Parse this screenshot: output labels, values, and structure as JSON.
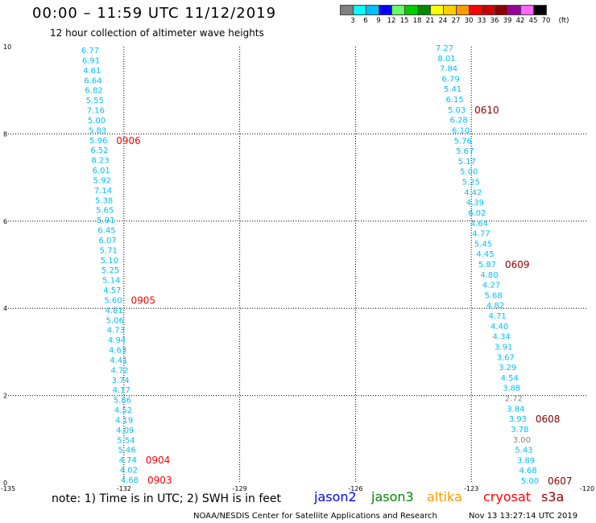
{
  "header": {
    "title": "00:00 – 11:59 UTC 11/12/2019",
    "subtitle": "12 hour collection of altimeter wave heights"
  },
  "legend": {
    "unit": "(ft)",
    "levels": [
      {
        "label": "3",
        "color": "#808080"
      },
      {
        "label": "6",
        "color": "#00ffff"
      },
      {
        "label": "9",
        "color": "#00bfff"
      },
      {
        "label": "12",
        "color": "#0000ff"
      },
      {
        "label": "15",
        "color": "#66ff66"
      },
      {
        "label": "18",
        "color": "#00cc00"
      },
      {
        "label": "21",
        "color": "#008800"
      },
      {
        "label": "24",
        "color": "#ffff00"
      },
      {
        "label": "27",
        "color": "#ffcc00"
      },
      {
        "label": "30",
        "color": "#ff9900"
      },
      {
        "label": "33",
        "color": "#ff0000"
      },
      {
        "label": "36",
        "color": "#cc0000"
      },
      {
        "label": "39",
        "color": "#880000"
      },
      {
        "label": "42",
        "color": "#990099"
      },
      {
        "label": "45",
        "color": "#ff66ff"
      },
      {
        "label": "70",
        "color": "#000000"
      }
    ]
  },
  "map": {
    "lon_ticks": [
      "-135",
      "-132",
      "-129",
      "-126",
      "-123",
      "-120"
    ],
    "lat_ticks": [
      "0",
      "2",
      "4",
      "6",
      "8",
      "10"
    ],
    "grid": "dotted"
  },
  "tracks": [
    {
      "name": "west",
      "color": "#00bfff",
      "heights": [
        "6.77",
        "6.91",
        "4.61",
        "6.64",
        "6.82",
        "5.55",
        "7.16",
        "5.00",
        "5.83",
        "5.96",
        "6.52",
        "8.23",
        "6.01",
        "5.92",
        "7.14",
        "5.38",
        "5.65",
        "5.91",
        "6.45",
        "6.07",
        "5.71",
        "5.10",
        "5.25",
        "5.14",
        "4.57",
        "5.60",
        "4.81",
        "5.06",
        "4.73",
        "4.94",
        "4.63",
        "4.41",
        "4.72",
        "3.74",
        "4.17",
        "5.86",
        "4.52",
        "4.19",
        "4.09",
        "5.54",
        "5.46",
        "4.74",
        "4.02",
        "4.68"
      ],
      "gray_indices": [],
      "time_labels": [
        {
          "index": 9,
          "text": "0906",
          "color": "#ff0000"
        },
        {
          "index": 25,
          "text": "0905",
          "color": "#ff0000"
        },
        {
          "index": 41,
          "text": "0904",
          "color": "#ff0000"
        },
        {
          "index": 43,
          "text": "0903",
          "color": "#ff0000"
        }
      ]
    },
    {
      "name": "east",
      "color": "#00bfff",
      "heights": [
        "7.27",
        "8.01",
        "7.84",
        "6.79",
        "5.41",
        "6.15",
        "5.03",
        "6.28",
        "6.10",
        "5.76",
        "5.67",
        "5.17",
        "5.00",
        "5.25",
        "4.42",
        "4.39",
        "6.02",
        "4.64",
        "4.77",
        "5.45",
        "4.45",
        "5.87",
        "4.80",
        "4.27",
        "5.68",
        "4.82",
        "4.71",
        "4.40",
        "4.34",
        "3.91",
        "3.67",
        "3.29",
        "4.54",
        "3.88",
        "2.72",
        "3.84",
        "3.93",
        "3.78",
        "3.00",
        "5.43",
        "3.89",
        "4.68",
        "5.00"
      ],
      "gray_indices": [
        34,
        38
      ],
      "time_labels": [
        {
          "index": 6,
          "text": "0610",
          "color": "#880000"
        },
        {
          "index": 21,
          "text": "0609",
          "color": "#880000"
        },
        {
          "index": 36,
          "text": "0608",
          "color": "#880000"
        },
        {
          "index": 42,
          "text": "0607",
          "color": "#880000"
        }
      ]
    }
  ],
  "footer": {
    "note": "note: 1) Time is in UTC; 2) SWH is in feet",
    "satellites": [
      {
        "name": "jason2",
        "color": "#0000ff"
      },
      {
        "name": "jason3",
        "color": "#008800"
      },
      {
        "name": "altika",
        "color": "#ff9900"
      },
      {
        "name": "cryosat",
        "color": "#ff0000"
      },
      {
        "name": "s3a",
        "color": "#880000"
      }
    ],
    "credit": "NOAA/NESDIS Center for Satellite Applications and Research",
    "timestamp": "Nov 13 13:27:14 UTC 2019"
  }
}
